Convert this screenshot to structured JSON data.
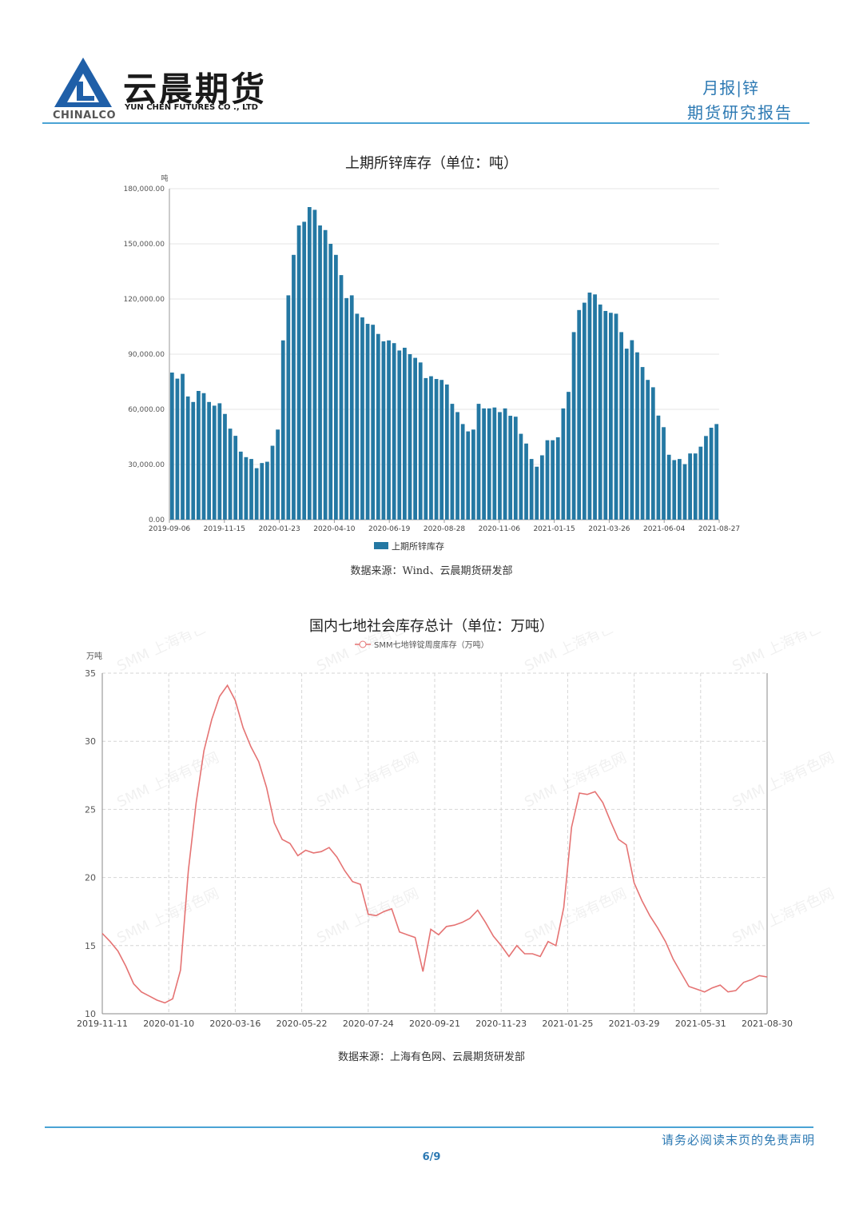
{
  "header": {
    "brand_cn": "云晨期货",
    "brand_en": "YUN CHEN FUTURES CO ., LTD",
    "brand_chinalco": "CHINALCO",
    "report_type": "月报|锌",
    "report_sub": "期货研究报告"
  },
  "colors": {
    "accent": "#2c79b3",
    "bar": "#2478a3",
    "line": "#e57373",
    "rule": "#4aa3d4"
  },
  "chart1": {
    "title": "上期所锌库存（单位：吨）",
    "source": "数据来源：Wind、云晨期货研发部",
    "unit": "吨",
    "legend": "上期所锌库存"
  },
  "chart2": {
    "title": "国内七地社会库存总计（单位：万吨）",
    "source": "数据来源：上海有色网、云晨期货研发部",
    "unit": "万吨",
    "legend": "SMM七地锌锭周度库存（万吨）",
    "watermark": "SMM 上海有色网"
  },
  "footer": {
    "disclaimer": "请务必阅读末页的免责声明",
    "page": "6/9"
  },
  "chart_data": [
    {
      "type": "bar",
      "title": "上期所锌库存（单位：吨）",
      "ylabel": "吨",
      "ylim": [
        0,
        180000
      ],
      "yticks": [
        "0.00",
        "30,000.00",
        "60,000.00",
        "90,000.00",
        "120,000.00",
        "150,000.00",
        "180,000.00"
      ],
      "xticks": [
        "2019-09-06",
        "2019-11-15",
        "2020-01-23",
        "2020-04-10",
        "2020-06-19",
        "2020-08-28",
        "2020-11-06",
        "2021-01-15",
        "2021-03-26",
        "2021-06-04",
        "2021-08-27"
      ],
      "series": [
        {
          "name": "上期所锌库存",
          "values": [
            80000,
            76700,
            79300,
            67000,
            64000,
            70000,
            68800,
            64000,
            62000,
            63300,
            57500,
            49500,
            45600,
            37000,
            34000,
            33000,
            28000,
            30800,
            31500,
            40200,
            49000,
            97500,
            122000,
            144000,
            160000,
            162000,
            170000,
            168500,
            160000,
            157500,
            150000,
            144000,
            133000,
            120500,
            122000,
            112000,
            110000,
            106500,
            106000,
            101000,
            97000,
            97500,
            96000,
            92000,
            93500,
            90000,
            88000,
            85500,
            77000,
            78000,
            76500,
            76000,
            73500,
            63000,
            58500,
            52000,
            48000,
            49000,
            63000,
            60500,
            60500,
            61000,
            58500,
            60500,
            56500,
            56000,
            46700,
            41400,
            33000,
            28800,
            35000,
            43200,
            43200,
            44800,
            60500,
            69500,
            102000,
            114000,
            118000,
            123500,
            122500,
            117000,
            113500,
            112500,
            112000,
            102000,
            93000,
            97600,
            91000,
            83000,
            76000,
            72000,
            56600,
            50300,
            35300,
            32400,
            33000,
            30200,
            36000,
            36000,
            39700,
            45500,
            50000,
            52000
          ]
        }
      ]
    },
    {
      "type": "line",
      "title": "国内七地社会库存总计（单位：万吨）",
      "ylabel": "万吨",
      "ylim": [
        10,
        35
      ],
      "yticks": [
        10,
        15,
        20,
        25,
        30,
        35
      ],
      "xticks": [
        "2019-11-11",
        "2020-01-10",
        "2020-03-16",
        "2020-05-22",
        "2020-07-24",
        "2020-09-21",
        "2020-11-23",
        "2021-01-25",
        "2021-03-29",
        "2021-05-31",
        "2021-08-30"
      ],
      "series": [
        {
          "name": "SMM七地锌锭周度库存（万吨）",
          "values": [
            15.9,
            15.3,
            14.6,
            13.5,
            12.2,
            11.6,
            11.3,
            11.0,
            10.8,
            11.1,
            13.2,
            20.5,
            25.5,
            29.3,
            31.6,
            33.3,
            34.1,
            33.0,
            31.0,
            29.6,
            28.5,
            26.6,
            24.0,
            22.8,
            22.5,
            21.6,
            22.0,
            21.8,
            21.9,
            22.2,
            21.5,
            20.5,
            19.7,
            19.5,
            17.3,
            17.2,
            17.5,
            17.7,
            16.0,
            15.8,
            15.6,
            13.1,
            16.2,
            15.8,
            16.4,
            16.5,
            16.7,
            17.0,
            17.6,
            16.7,
            15.7,
            15.0,
            14.2,
            15.0,
            14.4,
            14.4,
            14.2,
            15.3,
            15.0,
            17.8,
            23.7,
            26.2,
            26.1,
            26.3,
            25.5,
            24.1,
            22.8,
            22.4,
            19.6,
            18.3,
            17.2,
            16.3,
            15.3,
            14.0,
            13.0,
            12.0,
            11.8,
            11.6,
            11.9,
            12.1,
            11.6,
            11.7,
            12.3,
            12.5,
            12.8,
            12.7
          ]
        }
      ]
    }
  ]
}
